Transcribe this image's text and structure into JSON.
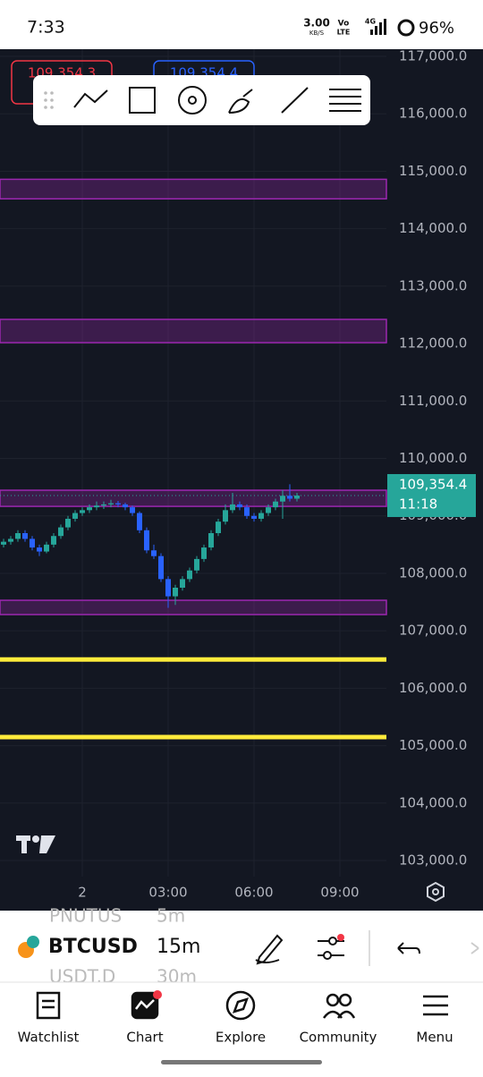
{
  "status_bar": {
    "time": "7:33",
    "speed": "3.00",
    "speed_unit": "KB/S",
    "volte_top": "Vo",
    "volte_bottom": "LTE",
    "network": "4G",
    "battery": "96%"
  },
  "chart_data": {
    "type": "candlestick",
    "price_boxes": [
      "109,354.3",
      "109,354.4"
    ],
    "x": [
      -2.75,
      -2.5,
      -2.25,
      -2,
      -1.75,
      -1.5,
      -1.25,
      -1,
      -0.75,
      -0.5,
      -0.25,
      0,
      0.25,
      0.5,
      0.75,
      1,
      1.25,
      1.5,
      1.75,
      2,
      2.25,
      2.5,
      2.75,
      3,
      3.25,
      3.5,
      3.75,
      4,
      4.25,
      4.5,
      4.75,
      5,
      5.25,
      5.5,
      5.75,
      6,
      6.25,
      6.5,
      6.75,
      7,
      7.25,
      7.5
    ],
    "open": [
      108500,
      108550,
      108600,
      108700,
      108600,
      108450,
      108380,
      108500,
      108650,
      108800,
      108950,
      109050,
      109100,
      109150,
      109180,
      109200,
      109220,
      109200,
      109150,
      109050,
      108750,
      108400,
      108300,
      107900,
      107600,
      107750,
      107900,
      108050,
      108250,
      108450,
      108700,
      108900,
      109100,
      109200,
      109150,
      109000,
      108950,
      109050,
      109150,
      109250,
      109350,
      109300
    ],
    "high": [
      108600,
      108650,
      108750,
      108750,
      108650,
      108500,
      108550,
      108700,
      108850,
      109000,
      109100,
      109150,
      109200,
      109250,
      109250,
      109280,
      109260,
      109230,
      109180,
      109080,
      108800,
      108500,
      108350,
      107950,
      107800,
      107950,
      108100,
      108300,
      108500,
      108750,
      108950,
      109200,
      109400,
      109250,
      109200,
      109050,
      109100,
      109200,
      109300,
      109450,
      109550,
      109400
    ],
    "low": [
      108450,
      108500,
      108550,
      108550,
      108400,
      108300,
      108350,
      108450,
      108600,
      108750,
      108900,
      109000,
      109050,
      109100,
      109120,
      109150,
      109150,
      109100,
      109000,
      108700,
      108350,
      108250,
      107850,
      107400,
      107450,
      107700,
      107850,
      108000,
      108200,
      108400,
      108650,
      108850,
      109050,
      109100,
      108950,
      108900,
      108900,
      109000,
      109100,
      108950,
      109250,
      109250
    ],
    "close": [
      108550,
      108600,
      108700,
      108600,
      108450,
      108380,
      108500,
      108650,
      108800,
      108950,
      109050,
      109100,
      109150,
      109180,
      109200,
      109220,
      109200,
      109150,
      109050,
      108750,
      108400,
      108300,
      107900,
      107600,
      107750,
      107900,
      108050,
      108250,
      108450,
      108700,
      108900,
      109100,
      109200,
      109150,
      109000,
      108950,
      109050,
      109150,
      109250,
      109350,
      109300,
      109354.4
    ],
    "up_color": "#26a69a",
    "down_color": "#2962ff",
    "zones": [
      {
        "from": 114520,
        "to": 114860
      },
      {
        "from": 112016,
        "to": 112421
      },
      {
        "from": 109166,
        "to": 109447
      },
      {
        "from": 107282,
        "to": 107531
      }
    ],
    "zone_color": "#9c27b0",
    "levels": [
      106500,
      105150
    ],
    "level_color": "#ffeb3b",
    "last_price": {
      "value": 109354.4,
      "label": "109,354.4",
      "countdown": "11:18"
    },
    "ylim": [
      102720,
      117125
    ],
    "yticks": [
      {
        "value": 117000,
        "label": "117,000.0"
      },
      {
        "value": 116000,
        "label": "116,000.0"
      },
      {
        "value": 115000,
        "label": "115,000.0"
      },
      {
        "value": 114000,
        "label": "114,000.0"
      },
      {
        "value": 113000,
        "label": "113,000.0"
      },
      {
        "value": 112000,
        "label": "112,000.0"
      },
      {
        "value": 111000,
        "label": "111,000.0"
      },
      {
        "value": 110000,
        "label": "110,000.0"
      },
      {
        "value": 109000,
        "label": "109,000.0"
      },
      {
        "value": 108000,
        "label": "108,000.0"
      },
      {
        "value": 107000,
        "label": "107,000.0"
      },
      {
        "value": 106000,
        "label": "106,000.0"
      },
      {
        "value": 105000,
        "label": "105,000.0"
      },
      {
        "value": 104000,
        "label": "104,000.0"
      },
      {
        "value": 103000,
        "label": "103,000.0"
      }
    ],
    "xlim": [
      -2.875,
      10.625
    ],
    "xticks": [
      {
        "value": 0,
        "label": "2"
      },
      {
        "value": 3,
        "label": "03:00"
      },
      {
        "value": 6,
        "label": "06:00"
      },
      {
        "value": 9,
        "label": "09:00"
      }
    ],
    "grid": true
  },
  "symbol_bar": {
    "prev_symbol": "PNUTUS",
    "prev_interval": "5m",
    "symbol": "BTCUSD",
    "interval": "15m",
    "next_symbol": "USDT.D",
    "next_interval": "30m"
  },
  "nav": [
    "Watchlist",
    "Chart",
    "Explore",
    "Community",
    "Menu"
  ]
}
